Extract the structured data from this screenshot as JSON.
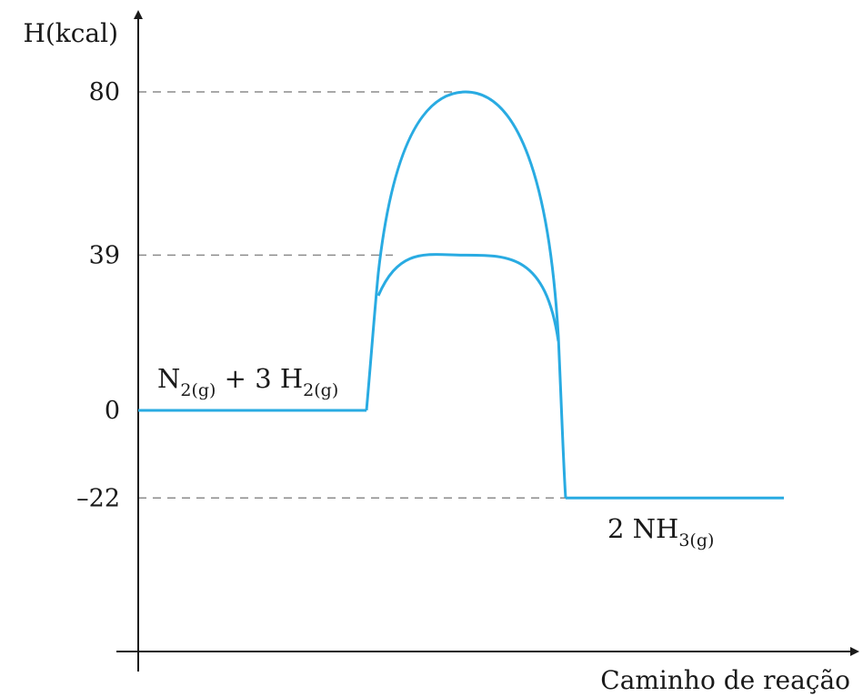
{
  "chart_data": {
    "type": "line",
    "ylabel": "H(kcal)",
    "xlabel": "Caminho de reação",
    "yticks": [
      {
        "value": 80,
        "label": "80"
      },
      {
        "value": 39,
        "label": "39"
      },
      {
        "value": 0,
        "label": "0"
      },
      {
        "value": -22,
        "label": "–22"
      }
    ],
    "ylim": [
      -30,
      88
    ],
    "reactant_level": 0,
    "product_level": -22,
    "peaks": [
      80,
      39
    ],
    "reactants": {
      "parts": [
        "N",
        "2(g)",
        " + 3 H",
        "2(g)"
      ]
    },
    "products": {
      "parts": [
        "2 NH",
        "3(g)"
      ]
    },
    "dashed_guides": [
      80,
      39,
      -22
    ],
    "grid": false,
    "curve_color": "#29abe2",
    "axis_color": "#1a1a1a",
    "guide_color": "#8c8c8c"
  }
}
